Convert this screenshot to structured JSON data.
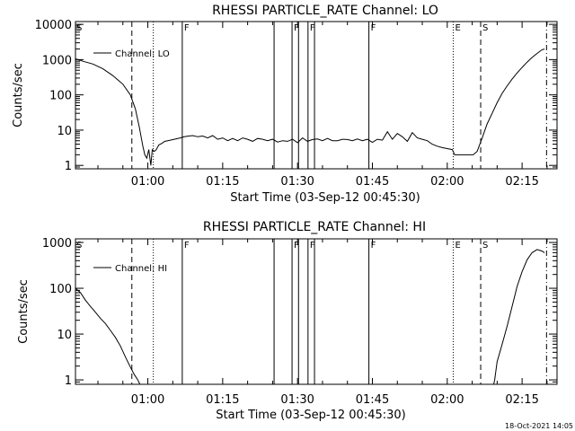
{
  "footer": {
    "timestamp": "18-Oct-2021 14:05"
  },
  "chart_data": [
    {
      "type": "line",
      "title": "RHESSI  PARTICLE_RATE  Channel:  LO",
      "xlabel": "Start Time (03-Sep-12 00:45:30)",
      "ylabel": "Counts/sec",
      "yscale": "log",
      "ylim": [
        0.8,
        12000
      ],
      "xlim_minutes": [
        45.5,
        142
      ],
      "xticks": [
        60,
        75,
        90,
        105,
        120,
        135
      ],
      "xtick_labels": [
        "01:00",
        "01:15",
        "01:30",
        "01:45",
        "02:00",
        "02:15"
      ],
      "yticks": [
        1,
        10,
        100,
        1000,
        10000
      ],
      "ytick_labels": [
        "1",
        "10",
        "100",
        "1000",
        "10000"
      ],
      "legend": {
        "label": "Channel:  LO",
        "position": "top-left"
      },
      "series": [
        {
          "name": "Channel:  LO",
          "x": [
            45.5,
            47,
            49,
            51,
            53,
            55,
            56.5,
            57.5,
            58.3,
            59,
            59.4,
            59.8,
            60.2,
            60.6,
            60.9,
            61.3,
            61.7,
            62.2,
            62.8,
            63.4,
            64,
            64.8,
            65.6,
            66.5,
            67.3,
            68.2,
            69,
            70,
            71,
            72,
            73,
            74,
            75,
            76,
            77,
            78,
            79,
            80,
            81,
            82,
            83,
            84,
            85,
            86,
            87,
            88,
            89,
            90,
            91,
            92,
            93,
            94,
            95,
            96,
            97,
            98,
            99,
            100,
            101,
            102,
            103,
            104,
            105,
            106,
            107,
            108,
            109,
            110,
            111,
            112,
            113,
            114,
            115,
            116,
            117,
            118,
            119,
            120,
            121,
            121.5,
            122,
            122.5,
            123,
            123.8,
            124.5,
            125.2,
            126,
            127,
            128,
            129,
            130,
            131,
            132,
            133,
            134,
            135,
            136,
            137,
            138,
            139,
            139.5
          ],
          "values": [
            1050,
            900,
            750,
            550,
            350,
            200,
            100,
            40,
            12,
            3.5,
            2,
            1.6,
            2.8,
            1.0,
            2.8,
            2.5,
            2.8,
            3.8,
            4.2,
            4.8,
            5.0,
            5.3,
            5.6,
            6.0,
            6.5,
            6.8,
            7.0,
            6.5,
            6.8,
            6.0,
            7.0,
            5.5,
            6.0,
            5.0,
            5.8,
            5.0,
            6.0,
            5.5,
            4.8,
            5.8,
            5.5,
            5.0,
            5.5,
            4.6,
            5.0,
            4.8,
            5.5,
            4.4,
            6.0,
            4.8,
            5.4,
            5.6,
            5.0,
            5.8,
            5.0,
            5.0,
            5.5,
            5.4,
            5.0,
            5.6,
            5.0,
            5.5,
            4.5,
            5.5,
            5.2,
            9.0,
            5.5,
            8.0,
            6.5,
            4.8,
            8.5,
            6.0,
            5.5,
            5.0,
            4.0,
            3.5,
            3.2,
            3.0,
            2.8,
            2.0,
            2.0,
            2.0,
            2.0,
            2.0,
            2.0,
            2.0,
            2.5,
            6.0,
            15,
            30,
            60,
            110,
            180,
            280,
            420,
            600,
            850,
            1150,
            1500,
            1900,
            2000
          ]
        }
      ]
    },
    {
      "type": "line",
      "title": "RHESSI  PARTICLE_RATE  Channel:  HI",
      "xlabel": "Start Time (03-Sep-12 00:45:30)",
      "ylabel": "Counts/sec",
      "yscale": "log",
      "ylim": [
        0.8,
        1200
      ],
      "xlim_minutes": [
        45.5,
        142
      ],
      "xticks": [
        60,
        75,
        90,
        105,
        120,
        135
      ],
      "xtick_labels": [
        "01:00",
        "01:15",
        "01:30",
        "01:45",
        "02:00",
        "02:15"
      ],
      "yticks": [
        1,
        10,
        100,
        1000
      ],
      "ytick_labels": [
        "1",
        "10",
        "100",
        "1000"
      ],
      "legend": {
        "label": "Channel:  HI",
        "position": "top-left"
      },
      "series": [
        {
          "name": "Channel:  HI",
          "x": [
            45.5,
            46.5,
            47.5,
            48.5,
            49.5,
            50.5,
            51.5,
            52.5,
            53.5,
            54.5,
            55.5,
            56.5,
            57.3,
            58,
            58.4,
            58.7,
            129.3,
            129.5,
            130,
            131,
            132,
            133,
            134,
            135,
            136,
            137,
            138,
            139,
            139.5
          ],
          "values": [
            100,
            80,
            55,
            40,
            30,
            22,
            17,
            12,
            8.5,
            5.5,
            3.2,
            1.9,
            1.3,
            1.0,
            0.8,
            0.8,
            0.8,
            1.0,
            2.5,
            6.0,
            15,
            40,
            110,
            230,
            420,
            600,
            700,
            650,
            600
          ]
        }
      ]
    }
  ],
  "markers": [
    {
      "x": 56.8,
      "label": "",
      "style": "dashed"
    },
    {
      "x": 61.1,
      "label": "",
      "style": "dotted"
    },
    {
      "x": 66.9,
      "label": "F",
      "style": "solid"
    },
    {
      "x": 85.3,
      "label": "",
      "style": "solid"
    },
    {
      "x": 88.9,
      "label": "F",
      "style": "solid"
    },
    {
      "x": 90.2,
      "label": "",
      "style": "solid"
    },
    {
      "x": 92.1,
      "label": "F",
      "style": "solid"
    },
    {
      "x": 93.4,
      "label": "",
      "style": "solid"
    },
    {
      "x": 104.3,
      "label": "F",
      "style": "solid"
    },
    {
      "x": 121.2,
      "label": "E",
      "style": "dotted"
    },
    {
      "x": 126.7,
      "label": "S",
      "style": "dashed"
    },
    {
      "x": 139.9,
      "label": "",
      "style": "dashdot"
    }
  ],
  "edge_label": "S"
}
